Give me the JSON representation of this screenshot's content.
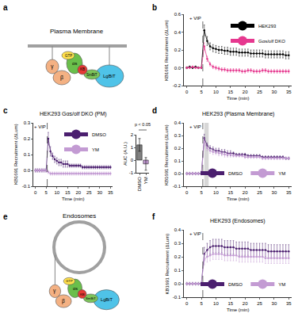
{
  "panel_labels": [
    "a",
    "b",
    "c",
    "d",
    "e",
    "f"
  ],
  "diagrams": [
    {
      "title": "Plasma Membrane",
      "labels": [
        "γ",
        "β",
        "αs",
        "GTP",
        "KB",
        "SmBiT",
        "LgBiT"
      ]
    },
    {
      "title": "Endosomes",
      "labels": [
        "γ",
        "β",
        "αs",
        "GTP",
        "KB",
        "SmBiT",
        "LgBiT"
      ]
    }
  ],
  "chart_data": [
    {
      "type": "line",
      "xlabel": "Time (min)",
      "ylabel": "KB1691 Recruitment (ΔLum)",
      "x": [
        0,
        1,
        2,
        3,
        4,
        5,
        6,
        7,
        8,
        9,
        10,
        11,
        12,
        13,
        14,
        15,
        16,
        17,
        18,
        19,
        20,
        21,
        22,
        23,
        24,
        25,
        26,
        27,
        28,
        29,
        30,
        31,
        32,
        33,
        34,
        35
      ],
      "xlim": [
        -1,
        36
      ],
      "xticks": [
        0,
        5,
        10,
        15,
        20,
        25,
        30,
        35
      ],
      "ylim": [
        -0.2,
        0.6
      ],
      "yticks": [
        -0.2,
        {
          "value": 0,
          "label": "0.0"
        },
        0.2,
        0.4,
        0.6
      ],
      "legend": "top right",
      "annotations": [
        {
          "text": "+ VIP",
          "x": 5.5
        }
      ],
      "series": [
        {
          "name": "HEK293",
          "color": "#000000",
          "values": [
            0,
            0.01,
            0,
            0.01,
            0,
            0,
            0.42,
            0.3,
            0.24,
            0.22,
            0.21,
            0.2,
            0.2,
            0.19,
            0.19,
            0.18,
            0.18,
            0.18,
            0.17,
            0.17,
            0.17,
            0.17,
            0.16,
            0.16,
            0.16,
            0.16,
            0.16,
            0.15,
            0.15,
            0.15,
            0.15,
            0.15,
            0.15,
            0.15,
            0.14,
            0.14
          ],
          "errors": [
            0.01,
            0.01,
            0.01,
            0.01,
            0.01,
            0.01,
            0.06,
            0.05,
            0.04,
            0.04,
            0.04,
            0.04,
            0.04,
            0.04,
            0.04,
            0.04,
            0.04,
            0.04,
            0.04,
            0.04,
            0.04,
            0.04,
            0.04,
            0.04,
            0.04,
            0.04,
            0.04,
            0.04,
            0.04,
            0.04,
            0.04,
            0.04,
            0.04,
            0.04,
            0.04,
            0.04
          ]
        },
        {
          "name": "Gαs/olf DKO",
          "color": "#e6388f",
          "values": [
            0,
            0,
            0.01,
            0,
            0,
            0,
            0.24,
            0.1,
            0.04,
            0.01,
            0,
            -0.01,
            -0.02,
            -0.02,
            -0.03,
            -0.03,
            -0.03,
            -0.03,
            -0.03,
            -0.04,
            -0.04,
            -0.03,
            -0.03,
            -0.04,
            -0.04,
            -0.04,
            -0.03,
            -0.03,
            -0.04,
            -0.04,
            -0.04,
            -0.04,
            -0.04,
            -0.04,
            -0.04,
            -0.04
          ],
          "errors": [
            0.01,
            0.01,
            0.01,
            0.01,
            0.01,
            0.01,
            0.04,
            0.03,
            0.02,
            0.02,
            0.02,
            0.02,
            0.02,
            0.02,
            0.02,
            0.02,
            0.02,
            0.02,
            0.02,
            0.02,
            0.02,
            0.02,
            0.02,
            0.02,
            0.02,
            0.02,
            0.02,
            0.02,
            0.02,
            0.02,
            0.02,
            0.02,
            0.02,
            0.02,
            0.02,
            0.02
          ]
        }
      ]
    },
    {
      "type": "line",
      "title": "HEK293 Gαs/olf DKO (PM)",
      "xlabel": "Time (min)",
      "ylabel": "KB1691 Recruitment (ΔLum)",
      "x": [
        0,
        1,
        2,
        3,
        4,
        5,
        6,
        7,
        8,
        9,
        10,
        11,
        12,
        13,
        14,
        15,
        16,
        17,
        18,
        19,
        20,
        21,
        22,
        23,
        24,
        25,
        26,
        27,
        28,
        29,
        30,
        31,
        32,
        33,
        34,
        35
      ],
      "xlim": [
        -1,
        36
      ],
      "xticks": [
        0,
        5,
        10,
        15,
        20,
        25,
        30,
        35
      ],
      "ylim": [
        -0.1,
        0.3
      ],
      "yticks": [
        -0.1,
        {
          "value": 0,
          "label": "0.0"
        },
        0.1,
        0.2,
        0.3
      ],
      "legend": "top right",
      "annotations": [
        {
          "text": "+ VIP",
          "x": 5.5
        }
      ],
      "series": [
        {
          "name": "DMSO",
          "color": "#4b1f6f",
          "values": [
            0,
            0,
            0,
            0,
            0,
            0,
            0.2,
            0.12,
            0.09,
            0.07,
            0.06,
            0.05,
            0.05,
            0.04,
            0.04,
            0.04,
            0.03,
            0.03,
            0.03,
            0.03,
            0.03,
            0.03,
            0.02,
            0.02,
            0.02,
            0.02,
            0.02,
            0.02,
            0.02,
            0.02,
            0.02,
            0.02,
            0.02,
            0.02,
            0.02,
            0.02
          ],
          "errors": [
            0.01,
            0.01,
            0.01,
            0.01,
            0.01,
            0.01,
            0.04,
            0.03,
            0.02,
            0.02,
            0.02,
            0.02,
            0.02,
            0.02,
            0.02,
            0.02,
            0.01,
            0.01,
            0.01,
            0.01,
            0.01,
            0.01,
            0.01,
            0.01,
            0.01,
            0.01,
            0.01,
            0.01,
            0.01,
            0.01,
            0.01,
            0.01,
            0.01,
            0.01,
            0.01,
            0.01
          ]
        },
        {
          "name": "YM",
          "color": "#c39bd3",
          "values": [
            0,
            0,
            0,
            0,
            0,
            0,
            -0.01,
            -0.02,
            -0.02,
            -0.02,
            -0.02,
            -0.02,
            -0.02,
            -0.02,
            -0.02,
            -0.02,
            -0.02,
            -0.02,
            -0.02,
            -0.02,
            -0.02,
            -0.02,
            -0.02,
            -0.02,
            -0.02,
            -0.02,
            -0.02,
            -0.02,
            -0.02,
            -0.02,
            -0.02,
            -0.02,
            -0.02,
            -0.02,
            -0.02,
            -0.02
          ],
          "errors": [
            0.01,
            0.01,
            0.01,
            0.01,
            0.01,
            0.01,
            0.01,
            0.01,
            0.01,
            0.01,
            0.01,
            0.01,
            0.01,
            0.01,
            0.01,
            0.01,
            0.01,
            0.01,
            0.01,
            0.01,
            0.01,
            0.01,
            0.01,
            0.01,
            0.01,
            0.01,
            0.01,
            0.01,
            0.01,
            0.01,
            0.01,
            0.01,
            0.01,
            0.01,
            0.01,
            0.01
          ]
        }
      ]
    },
    {
      "type": "bar",
      "ylabel": "AUC (A.U.)",
      "categories": [
        "DMSO",
        "YM"
      ],
      "values": [
        1.2,
        -0.3
      ],
      "errors": [
        0.5,
        0.5
      ],
      "colors": [
        "#7f7f7f",
        "#c39bd3"
      ],
      "ylim": [
        -1,
        2
      ],
      "yticks": [
        -1,
        0,
        1,
        2
      ],
      "annotations": [
        {
          "text": "p < 0.05"
        }
      ]
    },
    {
      "type": "line",
      "title": "HEK293 (Plasma Membrane)",
      "xlabel": "Time (min)",
      "ylabel": "KB1691 Recruitment (ΔLum)",
      "x": [
        0,
        1,
        2,
        3,
        4,
        5,
        6,
        7,
        8,
        9,
        10,
        11,
        12,
        13,
        14,
        15,
        16,
        17,
        18,
        19,
        20,
        21,
        22,
        23,
        24,
        25,
        26,
        27,
        28,
        29,
        30,
        31,
        32,
        33,
        34,
        35
      ],
      "xlim": [
        -1,
        36
      ],
      "xticks": [
        0,
        5,
        10,
        15,
        20,
        25,
        30,
        35
      ],
      "ylim": [
        -0.1,
        0.4
      ],
      "yticks": [
        -0.1,
        {
          "value": 0,
          "label": "0.0"
        },
        0.1,
        0.2,
        0.3,
        0.4
      ],
      "legend": "bottom right",
      "annotations": [
        {
          "text": "+ VIP",
          "x": 5.5
        }
      ],
      "highlight_x": [
        6,
        7.5
      ],
      "series": [
        {
          "name": "DMSO",
          "color": "#4b1f6f",
          "values": [
            0,
            0,
            0,
            0,
            0,
            0,
            0.28,
            0.22,
            0.2,
            0.19,
            0.18,
            0.18,
            0.17,
            0.17,
            0.16,
            0.16,
            0.16,
            0.15,
            0.15,
            0.15,
            0.15,
            0.14,
            0.14,
            0.14,
            0.14,
            0.14,
            0.13,
            0.13,
            0.13,
            0.13,
            0.13,
            0.13,
            0.13,
            0.13,
            0.12,
            0.12
          ],
          "errors": [
            0.01,
            0.01,
            0.01,
            0.01,
            0.01,
            0.01,
            0.03,
            0.02,
            0.02,
            0.02,
            0.02,
            0.02,
            0.02,
            0.02,
            0.02,
            0.02,
            0.01,
            0.01,
            0.01,
            0.01,
            0.01,
            0.01,
            0.01,
            0.01,
            0.01,
            0.01,
            0.01,
            0.01,
            0.01,
            0.01,
            0.01,
            0.01,
            0.01,
            0.01,
            0.01,
            0.01
          ]
        },
        {
          "name": "YM",
          "color": "#c39bd3",
          "values": [
            0,
            0,
            0,
            0,
            0,
            0,
            0.25,
            0.2,
            0.18,
            0.17,
            0.17,
            0.16,
            0.16,
            0.15,
            0.15,
            0.15,
            0.14,
            0.14,
            0.14,
            0.14,
            0.13,
            0.13,
            0.13,
            0.13,
            0.13,
            0.13,
            0.12,
            0.12,
            0.12,
            0.12,
            0.12,
            0.12,
            0.12,
            0.12,
            0.12,
            0.12
          ],
          "errors": [
            0.01,
            0.01,
            0.01,
            0.01,
            0.01,
            0.01,
            0.03,
            0.02,
            0.02,
            0.02,
            0.02,
            0.02,
            0.02,
            0.02,
            0.02,
            0.02,
            0.01,
            0.01,
            0.01,
            0.01,
            0.01,
            0.01,
            0.01,
            0.01,
            0.01,
            0.01,
            0.01,
            0.01,
            0.01,
            0.01,
            0.01,
            0.01,
            0.01,
            0.01,
            0.01,
            0.01
          ]
        }
      ]
    },
    {
      "type": "line",
      "title": "HEK293 (Endosomes)",
      "xlabel": "Time (min)",
      "ylabel": "KB1691 Recruitment (ΔLum)",
      "x": [
        0,
        1,
        2,
        3,
        4,
        5,
        6,
        7,
        8,
        9,
        10,
        11,
        12,
        13,
        14,
        15,
        16,
        17,
        18,
        19,
        20,
        21,
        22,
        23,
        24,
        25,
        26,
        27,
        28,
        29,
        30,
        31,
        32,
        33,
        34,
        35
      ],
      "xlim": [
        -1,
        36
      ],
      "xticks": [
        0,
        5,
        10,
        15,
        20,
        25,
        30,
        35
      ],
      "ylim": [
        -0.1,
        0.4
      ],
      "yticks": [
        -0.1,
        {
          "value": 0,
          "label": "0.0"
        },
        0.1,
        0.2,
        0.3,
        0.4
      ],
      "legend": "bottom right",
      "annotations": [
        {
          "text": "+ VIP",
          "x": 5.5
        }
      ],
      "series": [
        {
          "name": "DMSO",
          "color": "#4b1f6f",
          "values": [
            0,
            0,
            0,
            0,
            0,
            0,
            0.22,
            0.25,
            0.27,
            0.28,
            0.28,
            0.28,
            0.28,
            0.27,
            0.27,
            0.27,
            0.27,
            0.26,
            0.26,
            0.26,
            0.26,
            0.26,
            0.25,
            0.25,
            0.25,
            0.25,
            0.25,
            0.25,
            0.24,
            0.24,
            0.24,
            0.24,
            0.24,
            0.24,
            0.24,
            0.24
          ],
          "errors": [
            0.01,
            0.01,
            0.01,
            0.01,
            0.01,
            0.01,
            0.05,
            0.05,
            0.05,
            0.05,
            0.05,
            0.05,
            0.05,
            0.05,
            0.05,
            0.05,
            0.05,
            0.05,
            0.05,
            0.05,
            0.05,
            0.05,
            0.05,
            0.05,
            0.05,
            0.05,
            0.05,
            0.05,
            0.05,
            0.05,
            0.05,
            0.05,
            0.05,
            0.05,
            0.05,
            0.05
          ]
        },
        {
          "name": "YM",
          "color": "#c39bd3",
          "values": [
            0,
            0,
            0,
            0,
            0,
            0,
            0.18,
            0.2,
            0.21,
            0.22,
            0.22,
            0.22,
            0.22,
            0.21,
            0.21,
            0.21,
            0.21,
            0.21,
            0.2,
            0.2,
            0.2,
            0.2,
            0.2,
            0.2,
            0.2,
            0.2,
            0.2,
            0.19,
            0.19,
            0.19,
            0.19,
            0.19,
            0.19,
            0.19,
            0.19,
            0.19
          ],
          "errors": [
            0.01,
            0.01,
            0.01,
            0.01,
            0.01,
            0.01,
            0.04,
            0.04,
            0.04,
            0.04,
            0.04,
            0.04,
            0.04,
            0.04,
            0.04,
            0.04,
            0.04,
            0.04,
            0.04,
            0.04,
            0.04,
            0.04,
            0.04,
            0.04,
            0.04,
            0.04,
            0.04,
            0.04,
            0.04,
            0.04,
            0.04,
            0.04,
            0.04,
            0.04,
            0.04,
            0.04
          ]
        }
      ]
    }
  ]
}
